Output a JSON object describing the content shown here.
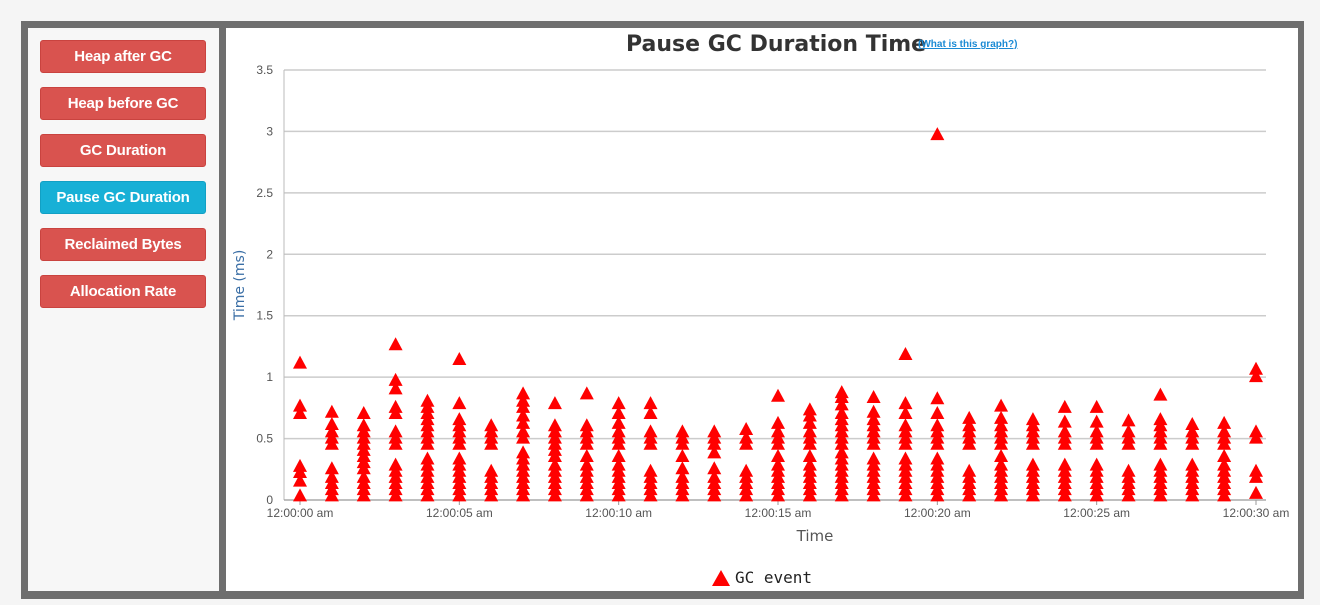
{
  "sidebar": {
    "buttons": [
      {
        "label": "Heap after GC",
        "active": false
      },
      {
        "label": "Heap before GC",
        "active": false
      },
      {
        "label": "GC Duration",
        "active": false
      },
      {
        "label": "Pause GC Duration",
        "active": true
      },
      {
        "label": "Reclaimed Bytes",
        "active": false
      },
      {
        "label": "Allocation Rate",
        "active": false
      }
    ]
  },
  "help_link": "(What is this graph?)",
  "colors": {
    "marker": "#ff0000",
    "active_button": "#17b0d6",
    "button": "#d9534f",
    "grid": "#cccccc"
  },
  "chart_data": {
    "type": "scatter",
    "title": "Pause GC Duration Time",
    "xlabel": "Time",
    "ylabel": "Time (ms)",
    "ylim": [
      0,
      3.5
    ],
    "yticks": [
      "0",
      "0.5",
      "1",
      "1.5",
      "2",
      "2.5",
      "3",
      "3.5"
    ],
    "xlim": [
      "12:00:00 am",
      "12:00:30 am"
    ],
    "xticks": [
      "12:00:00 am",
      "12:00:05 am",
      "12:00:10 am",
      "12:00:15 am",
      "12:00:20 am",
      "12:00:25 am",
      "12:00:30 am"
    ],
    "grid": true,
    "legend_position": "bottom-center",
    "marker": "triangle",
    "series": [
      {
        "name": "GC event",
        "points": [
          {
            "t": "12:00:00 am",
            "values": [
              0.03,
              0.15,
              0.22,
              0.27,
              0.7,
              0.76,
              1.11
            ]
          },
          {
            "t": "12:00:01 am",
            "values": [
              0.03,
              0.08,
              0.13,
              0.18,
              0.25,
              0.45,
              0.5,
              0.55,
              0.61,
              0.71
            ]
          },
          {
            "t": "12:00:02 am",
            "values": [
              0.03,
              0.08,
              0.13,
              0.18,
              0.25,
              0.3,
              0.35,
              0.4,
              0.45,
              0.5,
              0.55,
              0.6,
              0.7
            ]
          },
          {
            "t": "12:00:03 am",
            "values": [
              0.03,
              0.08,
              0.13,
              0.18,
              0.23,
              0.28,
              0.45,
              0.5,
              0.55,
              0.7,
              0.75,
              0.9,
              0.97,
              1.26
            ]
          },
          {
            "t": "12:00:04 am",
            "values": [
              0.03,
              0.08,
              0.13,
              0.18,
              0.23,
              0.28,
              0.33,
              0.45,
              0.5,
              0.55,
              0.6,
              0.65,
              0.7,
              0.75,
              0.8
            ]
          },
          {
            "t": "12:00:05 am",
            "values": [
              0.03,
              0.08,
              0.13,
              0.18,
              0.23,
              0.28,
              0.33,
              0.45,
              0.5,
              0.55,
              0.6,
              0.65,
              0.78,
              1.14
            ]
          },
          {
            "t": "12:00:06 am",
            "values": [
              0.03,
              0.08,
              0.13,
              0.18,
              0.23,
              0.45,
              0.5,
              0.55,
              0.6
            ]
          },
          {
            "t": "12:00:07 am",
            "values": [
              0.03,
              0.08,
              0.13,
              0.18,
              0.23,
              0.28,
              0.33,
              0.38,
              0.5,
              0.55,
              0.62,
              0.68,
              0.75,
              0.8,
              0.86
            ]
          },
          {
            "t": "12:00:08 am",
            "values": [
              0.03,
              0.08,
              0.13,
              0.18,
              0.23,
              0.28,
              0.35,
              0.4,
              0.45,
              0.5,
              0.55,
              0.6,
              0.78
            ]
          },
          {
            "t": "12:00:09 am",
            "values": [
              0.03,
              0.08,
              0.13,
              0.18,
              0.23,
              0.28,
              0.35,
              0.45,
              0.5,
              0.55,
              0.6,
              0.86
            ]
          },
          {
            "t": "12:00:10 am",
            "values": [
              0.03,
              0.08,
              0.13,
              0.18,
              0.23,
              0.28,
              0.35,
              0.45,
              0.5,
              0.55,
              0.62,
              0.7,
              0.78
            ]
          },
          {
            "t": "12:00:11 am",
            "values": [
              0.03,
              0.08,
              0.13,
              0.18,
              0.23,
              0.45,
              0.5,
              0.55,
              0.7,
              0.78
            ]
          },
          {
            "t": "12:00:12 am",
            "values": [
              0.03,
              0.08,
              0.13,
              0.18,
              0.25,
              0.35,
              0.45,
              0.5,
              0.55
            ]
          },
          {
            "t": "12:00:13 am",
            "values": [
              0.03,
              0.08,
              0.13,
              0.18,
              0.25,
              0.38,
              0.45,
              0.5,
              0.55
            ]
          },
          {
            "t": "12:00:14 am",
            "values": [
              0.03,
              0.08,
              0.13,
              0.18,
              0.23,
              0.45,
              0.5,
              0.57
            ]
          },
          {
            "t": "12:00:15 am",
            "values": [
              0.03,
              0.08,
              0.13,
              0.18,
              0.23,
              0.28,
              0.35,
              0.45,
              0.5,
              0.55,
              0.62,
              0.84
            ]
          },
          {
            "t": "12:00:16 am",
            "values": [
              0.03,
              0.08,
              0.13,
              0.18,
              0.23,
              0.28,
              0.35,
              0.45,
              0.5,
              0.55,
              0.62,
              0.68,
              0.73
            ]
          },
          {
            "t": "12:00:17 am",
            "values": [
              0.03,
              0.08,
              0.13,
              0.18,
              0.23,
              0.28,
              0.33,
              0.38,
              0.45,
              0.5,
              0.55,
              0.6,
              0.65,
              0.7,
              0.77,
              0.83,
              0.87
            ]
          },
          {
            "t": "12:00:18 am",
            "values": [
              0.03,
              0.08,
              0.13,
              0.18,
              0.23,
              0.28,
              0.33,
              0.45,
              0.5,
              0.55,
              0.6,
              0.65,
              0.71,
              0.83
            ]
          },
          {
            "t": "12:00:19 am",
            "values": [
              0.03,
              0.08,
              0.13,
              0.18,
              0.23,
              0.28,
              0.33,
              0.45,
              0.5,
              0.55,
              0.6,
              0.7,
              0.78,
              1.18
            ]
          },
          {
            "t": "12:00:20 am",
            "values": [
              0.03,
              0.08,
              0.13,
              0.18,
              0.23,
              0.28,
              0.33,
              0.45,
              0.5,
              0.55,
              0.6,
              0.7,
              0.82,
              2.97
            ]
          },
          {
            "t": "12:00:21 am",
            "values": [
              0.03,
              0.08,
              0.13,
              0.18,
              0.23,
              0.45,
              0.5,
              0.55,
              0.6,
              0.66
            ]
          },
          {
            "t": "12:00:22 am",
            "values": [
              0.03,
              0.08,
              0.13,
              0.18,
              0.23,
              0.28,
              0.35,
              0.45,
              0.5,
              0.55,
              0.6,
              0.66,
              0.76
            ]
          },
          {
            "t": "12:00:23 am",
            "values": [
              0.03,
              0.08,
              0.13,
              0.18,
              0.23,
              0.28,
              0.45,
              0.5,
              0.55,
              0.6,
              0.65
            ]
          },
          {
            "t": "12:00:24 am",
            "values": [
              0.03,
              0.08,
              0.13,
              0.18,
              0.23,
              0.28,
              0.45,
              0.5,
              0.55,
              0.63,
              0.75
            ]
          },
          {
            "t": "12:00:25 am",
            "values": [
              0.03,
              0.08,
              0.13,
              0.18,
              0.23,
              0.28,
              0.45,
              0.5,
              0.55,
              0.63,
              0.75
            ]
          },
          {
            "t": "12:00:26 am",
            "values": [
              0.03,
              0.08,
              0.13,
              0.18,
              0.23,
              0.45,
              0.5,
              0.55,
              0.64
            ]
          },
          {
            "t": "12:00:27 am",
            "values": [
              0.03,
              0.08,
              0.13,
              0.18,
              0.23,
              0.28,
              0.45,
              0.5,
              0.55,
              0.6,
              0.65,
              0.85
            ]
          },
          {
            "t": "12:00:28 am",
            "values": [
              0.03,
              0.08,
              0.13,
              0.18,
              0.23,
              0.28,
              0.45,
              0.5,
              0.55,
              0.61
            ]
          },
          {
            "t": "12:00:29 am",
            "values": [
              0.03,
              0.08,
              0.13,
              0.18,
              0.23,
              0.28,
              0.35,
              0.45,
              0.5,
              0.55,
              0.62
            ]
          },
          {
            "t": "12:00:30 am",
            "values": [
              0.05,
              0.18,
              0.23,
              0.5,
              0.55,
              1.0,
              1.06
            ]
          }
        ]
      }
    ]
  }
}
